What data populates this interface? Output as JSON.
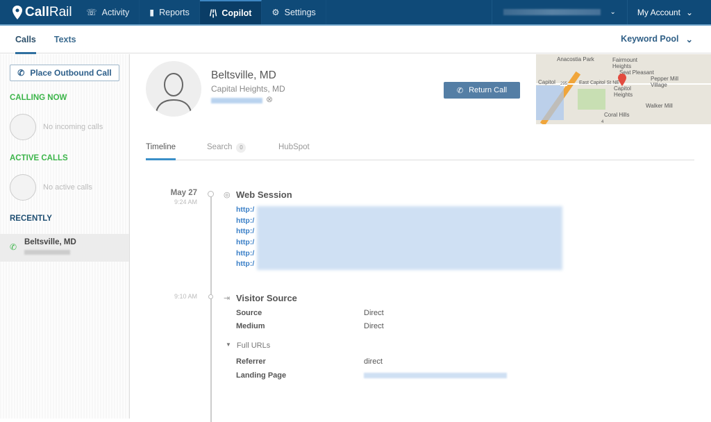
{
  "brand": {
    "name_bold": "Call",
    "name_light": "Rail"
  },
  "nav": {
    "items": [
      {
        "label": "Activity",
        "icon": "phone-activity-icon"
      },
      {
        "label": "Reports",
        "icon": "bar-chart-icon"
      },
      {
        "label": "Copilot",
        "icon": "copilot-icon",
        "active": true
      },
      {
        "label": "Settings",
        "icon": "gear-icon"
      }
    ],
    "account": "My Account"
  },
  "subnav": {
    "tabs": [
      {
        "label": "Calls",
        "active": true
      },
      {
        "label": "Texts"
      }
    ],
    "keyword_pool": "Keyword Pool"
  },
  "sidebar": {
    "outbound": "Place Outbound Call",
    "calling_now": "CALLING NOW",
    "no_incoming": "No incoming calls",
    "active_calls": "ACTIVE CALLS",
    "no_active": "No active calls",
    "recently": "RECENTLY",
    "recent_items": [
      {
        "name": "Beltsville, MD"
      }
    ]
  },
  "contact": {
    "name": "Beltsville, MD",
    "location": "Capital Heights, MD",
    "return_call": "Return Call"
  },
  "map": {
    "labels": [
      "Anacostia Park",
      "Fairmount Heights",
      "Seat Pleasant",
      "Capitol",
      "East Capitol St NE",
      "Capitol Heights",
      "Pepper Mill Village",
      "Walker Mill",
      "Coral Hills",
      "295",
      "4"
    ]
  },
  "tabs": [
    {
      "label": "Timeline",
      "active": true
    },
    {
      "label": "Search",
      "count": "0"
    },
    {
      "label": "HubSpot"
    }
  ],
  "timeline": {
    "web_session": {
      "date": "May 27",
      "time": "9:24 AM",
      "title": "Web Session",
      "urls": [
        "http:/",
        "http:/",
        "http:/",
        "http:/",
        "http:/",
        "http:/"
      ]
    },
    "visitor_source": {
      "time": "9:10 AM",
      "title": "Visitor Source",
      "source_label": "Source",
      "source": "Direct",
      "medium_label": "Medium",
      "medium": "Direct",
      "full_urls": "Full URLs",
      "referrer_label": "Referrer",
      "referrer": "direct",
      "landing_label": "Landing Page"
    }
  },
  "colors": {
    "nav": "#0f4a78",
    "accent": "#3a8fc8",
    "green": "#3cb54a",
    "button": "#547ea5"
  }
}
